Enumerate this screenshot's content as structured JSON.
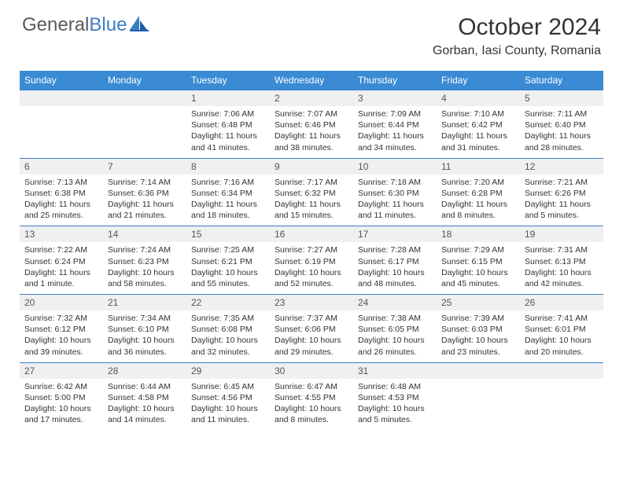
{
  "brand": {
    "part1": "General",
    "part2": "Blue"
  },
  "title": "October 2024",
  "location": "Gorban, Iasi County, Romania",
  "colors": {
    "header_bg": "#3b8bd4",
    "header_text": "#ffffff",
    "daynum_bg": "#eef0f2",
    "row_border": "#3b7fc4",
    "brand_gray": "#5a5a5a",
    "brand_blue": "#3b7fc4",
    "text": "#333333",
    "page_bg": "#ffffff"
  },
  "weekdays": [
    "Sunday",
    "Monday",
    "Tuesday",
    "Wednesday",
    "Thursday",
    "Friday",
    "Saturday"
  ],
  "weeks": [
    [
      null,
      null,
      {
        "n": "1",
        "sr": "Sunrise: 7:06 AM",
        "ss": "Sunset: 6:48 PM",
        "d1": "Daylight: 11 hours",
        "d2": "and 41 minutes."
      },
      {
        "n": "2",
        "sr": "Sunrise: 7:07 AM",
        "ss": "Sunset: 6:46 PM",
        "d1": "Daylight: 11 hours",
        "d2": "and 38 minutes."
      },
      {
        "n": "3",
        "sr": "Sunrise: 7:09 AM",
        "ss": "Sunset: 6:44 PM",
        "d1": "Daylight: 11 hours",
        "d2": "and 34 minutes."
      },
      {
        "n": "4",
        "sr": "Sunrise: 7:10 AM",
        "ss": "Sunset: 6:42 PM",
        "d1": "Daylight: 11 hours",
        "d2": "and 31 minutes."
      },
      {
        "n": "5",
        "sr": "Sunrise: 7:11 AM",
        "ss": "Sunset: 6:40 PM",
        "d1": "Daylight: 11 hours",
        "d2": "and 28 minutes."
      }
    ],
    [
      {
        "n": "6",
        "sr": "Sunrise: 7:13 AM",
        "ss": "Sunset: 6:38 PM",
        "d1": "Daylight: 11 hours",
        "d2": "and 25 minutes."
      },
      {
        "n": "7",
        "sr": "Sunrise: 7:14 AM",
        "ss": "Sunset: 6:36 PM",
        "d1": "Daylight: 11 hours",
        "d2": "and 21 minutes."
      },
      {
        "n": "8",
        "sr": "Sunrise: 7:16 AM",
        "ss": "Sunset: 6:34 PM",
        "d1": "Daylight: 11 hours",
        "d2": "and 18 minutes."
      },
      {
        "n": "9",
        "sr": "Sunrise: 7:17 AM",
        "ss": "Sunset: 6:32 PM",
        "d1": "Daylight: 11 hours",
        "d2": "and 15 minutes."
      },
      {
        "n": "10",
        "sr": "Sunrise: 7:18 AM",
        "ss": "Sunset: 6:30 PM",
        "d1": "Daylight: 11 hours",
        "d2": "and 11 minutes."
      },
      {
        "n": "11",
        "sr": "Sunrise: 7:20 AM",
        "ss": "Sunset: 6:28 PM",
        "d1": "Daylight: 11 hours",
        "d2": "and 8 minutes."
      },
      {
        "n": "12",
        "sr": "Sunrise: 7:21 AM",
        "ss": "Sunset: 6:26 PM",
        "d1": "Daylight: 11 hours",
        "d2": "and 5 minutes."
      }
    ],
    [
      {
        "n": "13",
        "sr": "Sunrise: 7:22 AM",
        "ss": "Sunset: 6:24 PM",
        "d1": "Daylight: 11 hours",
        "d2": "and 1 minute."
      },
      {
        "n": "14",
        "sr": "Sunrise: 7:24 AM",
        "ss": "Sunset: 6:23 PM",
        "d1": "Daylight: 10 hours",
        "d2": "and 58 minutes."
      },
      {
        "n": "15",
        "sr": "Sunrise: 7:25 AM",
        "ss": "Sunset: 6:21 PM",
        "d1": "Daylight: 10 hours",
        "d2": "and 55 minutes."
      },
      {
        "n": "16",
        "sr": "Sunrise: 7:27 AM",
        "ss": "Sunset: 6:19 PM",
        "d1": "Daylight: 10 hours",
        "d2": "and 52 minutes."
      },
      {
        "n": "17",
        "sr": "Sunrise: 7:28 AM",
        "ss": "Sunset: 6:17 PM",
        "d1": "Daylight: 10 hours",
        "d2": "and 48 minutes."
      },
      {
        "n": "18",
        "sr": "Sunrise: 7:29 AM",
        "ss": "Sunset: 6:15 PM",
        "d1": "Daylight: 10 hours",
        "d2": "and 45 minutes."
      },
      {
        "n": "19",
        "sr": "Sunrise: 7:31 AM",
        "ss": "Sunset: 6:13 PM",
        "d1": "Daylight: 10 hours",
        "d2": "and 42 minutes."
      }
    ],
    [
      {
        "n": "20",
        "sr": "Sunrise: 7:32 AM",
        "ss": "Sunset: 6:12 PM",
        "d1": "Daylight: 10 hours",
        "d2": "and 39 minutes."
      },
      {
        "n": "21",
        "sr": "Sunrise: 7:34 AM",
        "ss": "Sunset: 6:10 PM",
        "d1": "Daylight: 10 hours",
        "d2": "and 36 minutes."
      },
      {
        "n": "22",
        "sr": "Sunrise: 7:35 AM",
        "ss": "Sunset: 6:08 PM",
        "d1": "Daylight: 10 hours",
        "d2": "and 32 minutes."
      },
      {
        "n": "23",
        "sr": "Sunrise: 7:37 AM",
        "ss": "Sunset: 6:06 PM",
        "d1": "Daylight: 10 hours",
        "d2": "and 29 minutes."
      },
      {
        "n": "24",
        "sr": "Sunrise: 7:38 AM",
        "ss": "Sunset: 6:05 PM",
        "d1": "Daylight: 10 hours",
        "d2": "and 26 minutes."
      },
      {
        "n": "25",
        "sr": "Sunrise: 7:39 AM",
        "ss": "Sunset: 6:03 PM",
        "d1": "Daylight: 10 hours",
        "d2": "and 23 minutes."
      },
      {
        "n": "26",
        "sr": "Sunrise: 7:41 AM",
        "ss": "Sunset: 6:01 PM",
        "d1": "Daylight: 10 hours",
        "d2": "and 20 minutes."
      }
    ],
    [
      {
        "n": "27",
        "sr": "Sunrise: 6:42 AM",
        "ss": "Sunset: 5:00 PM",
        "d1": "Daylight: 10 hours",
        "d2": "and 17 minutes."
      },
      {
        "n": "28",
        "sr": "Sunrise: 6:44 AM",
        "ss": "Sunset: 4:58 PM",
        "d1": "Daylight: 10 hours",
        "d2": "and 14 minutes."
      },
      {
        "n": "29",
        "sr": "Sunrise: 6:45 AM",
        "ss": "Sunset: 4:56 PM",
        "d1": "Daylight: 10 hours",
        "d2": "and 11 minutes."
      },
      {
        "n": "30",
        "sr": "Sunrise: 6:47 AM",
        "ss": "Sunset: 4:55 PM",
        "d1": "Daylight: 10 hours",
        "d2": "and 8 minutes."
      },
      {
        "n": "31",
        "sr": "Sunrise: 6:48 AM",
        "ss": "Sunset: 4:53 PM",
        "d1": "Daylight: 10 hours",
        "d2": "and 5 minutes."
      },
      null,
      null
    ]
  ]
}
